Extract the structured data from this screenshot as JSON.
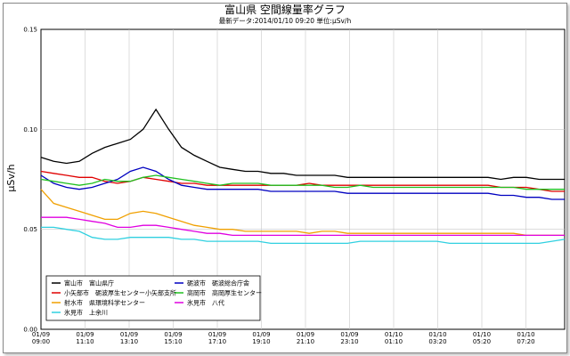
{
  "chart_data": {
    "type": "line",
    "title": "富山県 空間線量率グラフ",
    "subtitle": "最新データ:2014/01/10 09:20 単位:μSv/h",
    "ylabel": "μSv/h",
    "ylim": [
      0,
      0.15
    ],
    "yticks": [
      "0.00",
      "0.05",
      "0.10",
      "0.15"
    ],
    "xticks": [
      [
        "01/09",
        "09:00"
      ],
      [
        "01/09",
        "11:10"
      ],
      [
        "01/09",
        "13:10"
      ],
      [
        "01/09",
        "15:10"
      ],
      [
        "01/09",
        "17:10"
      ],
      [
        "01/09",
        "19:10"
      ],
      [
        "01/09",
        "21:10"
      ],
      [
        "01/09",
        "23:10"
      ],
      [
        "01/10",
        "01:10"
      ],
      [
        "01/10",
        "03:20"
      ],
      [
        "01/10",
        "05:20"
      ],
      [
        "01/10",
        "07:20"
      ]
    ],
    "grid": true,
    "legend_position": "bottom-left",
    "series": [
      {
        "name": "富山市　富山県庁",
        "color": "#000000",
        "values": [
          0.086,
          0.084,
          0.083,
          0.084,
          0.088,
          0.091,
          0.093,
          0.095,
          0.1,
          0.11,
          0.1,
          0.091,
          0.087,
          0.084,
          0.081,
          0.08,
          0.079,
          0.079,
          0.078,
          0.078,
          0.077,
          0.077,
          0.077,
          0.077,
          0.076,
          0.076,
          0.076,
          0.076,
          0.076,
          0.076,
          0.076,
          0.076,
          0.076,
          0.076,
          0.076,
          0.076,
          0.075,
          0.076,
          0.076,
          0.075,
          0.075,
          0.075
        ]
      },
      {
        "name": "小矢部市　砺波厚生センター小矢部支所",
        "color": "#e00000",
        "values": [
          0.079,
          0.078,
          0.077,
          0.076,
          0.076,
          0.074,
          0.073,
          0.074,
          0.076,
          0.075,
          0.074,
          0.073,
          0.073,
          0.072,
          0.072,
          0.072,
          0.072,
          0.072,
          0.072,
          0.072,
          0.072,
          0.073,
          0.072,
          0.072,
          0.072,
          0.072,
          0.072,
          0.072,
          0.072,
          0.072,
          0.072,
          0.072,
          0.072,
          0.072,
          0.072,
          0.072,
          0.071,
          0.071,
          0.071,
          0.07,
          0.069,
          0.069
        ]
      },
      {
        "name": "射水市　県環境科学センター",
        "color": "#f0a000",
        "values": [
          0.07,
          0.063,
          0.061,
          0.059,
          0.057,
          0.055,
          0.055,
          0.058,
          0.059,
          0.058,
          0.056,
          0.054,
          0.052,
          0.051,
          0.05,
          0.05,
          0.049,
          0.049,
          0.049,
          0.049,
          0.049,
          0.048,
          0.049,
          0.049,
          0.048,
          0.048,
          0.048,
          0.048,
          0.048,
          0.048,
          0.048,
          0.048,
          0.048,
          0.048,
          0.048,
          0.048,
          0.048,
          0.048,
          0.047,
          0.047,
          0.047,
          0.047
        ]
      },
      {
        "name": "氷見市　上余川",
        "color": "#30d0e0",
        "values": [
          0.051,
          0.051,
          0.05,
          0.049,
          0.046,
          0.045,
          0.045,
          0.046,
          0.046,
          0.046,
          0.046,
          0.045,
          0.045,
          0.044,
          0.044,
          0.044,
          0.044,
          0.044,
          0.043,
          0.043,
          0.043,
          0.043,
          0.043,
          0.043,
          0.043,
          0.044,
          0.044,
          0.044,
          0.044,
          0.044,
          0.044,
          0.044,
          0.043,
          0.043,
          0.043,
          0.043,
          0.043,
          0.043,
          0.043,
          0.043,
          0.044,
          0.045
        ]
      },
      {
        "name": "砺波市　砺波総合庁舎",
        "color": "#0000c0",
        "values": [
          0.077,
          0.073,
          0.071,
          0.07,
          0.071,
          0.073,
          0.075,
          0.079,
          0.081,
          0.079,
          0.075,
          0.072,
          0.071,
          0.07,
          0.07,
          0.07,
          0.07,
          0.07,
          0.069,
          0.069,
          0.069,
          0.069,
          0.069,
          0.069,
          0.068,
          0.068,
          0.068,
          0.068,
          0.068,
          0.068,
          0.068,
          0.068,
          0.068,
          0.068,
          0.068,
          0.068,
          0.067,
          0.067,
          0.066,
          0.066,
          0.065,
          0.065
        ]
      },
      {
        "name": "高岡市　高岡厚生センター",
        "color": "#20c020",
        "values": [
          0.075,
          0.074,
          0.073,
          0.072,
          0.073,
          0.075,
          0.074,
          0.074,
          0.076,
          0.077,
          0.076,
          0.075,
          0.074,
          0.073,
          0.072,
          0.073,
          0.073,
          0.073,
          0.072,
          0.072,
          0.072,
          0.072,
          0.072,
          0.071,
          0.071,
          0.072,
          0.071,
          0.071,
          0.071,
          0.071,
          0.071,
          0.071,
          0.071,
          0.071,
          0.071,
          0.071,
          0.071,
          0.071,
          0.07,
          0.07,
          0.07,
          0.07
        ]
      },
      {
        "name": "氷見市　八代",
        "color": "#e000e0",
        "values": [
          0.056,
          0.056,
          0.056,
          0.055,
          0.054,
          0.053,
          0.051,
          0.051,
          0.052,
          0.052,
          0.051,
          0.05,
          0.049,
          0.048,
          0.048,
          0.047,
          0.047,
          0.047,
          0.047,
          0.047,
          0.047,
          0.047,
          0.047,
          0.047,
          0.047,
          0.047,
          0.047,
          0.047,
          0.047,
          0.047,
          0.047,
          0.047,
          0.047,
          0.047,
          0.047,
          0.047,
          0.047,
          0.047,
          0.047,
          0.047,
          0.047,
          0.047
        ]
      }
    ]
  }
}
